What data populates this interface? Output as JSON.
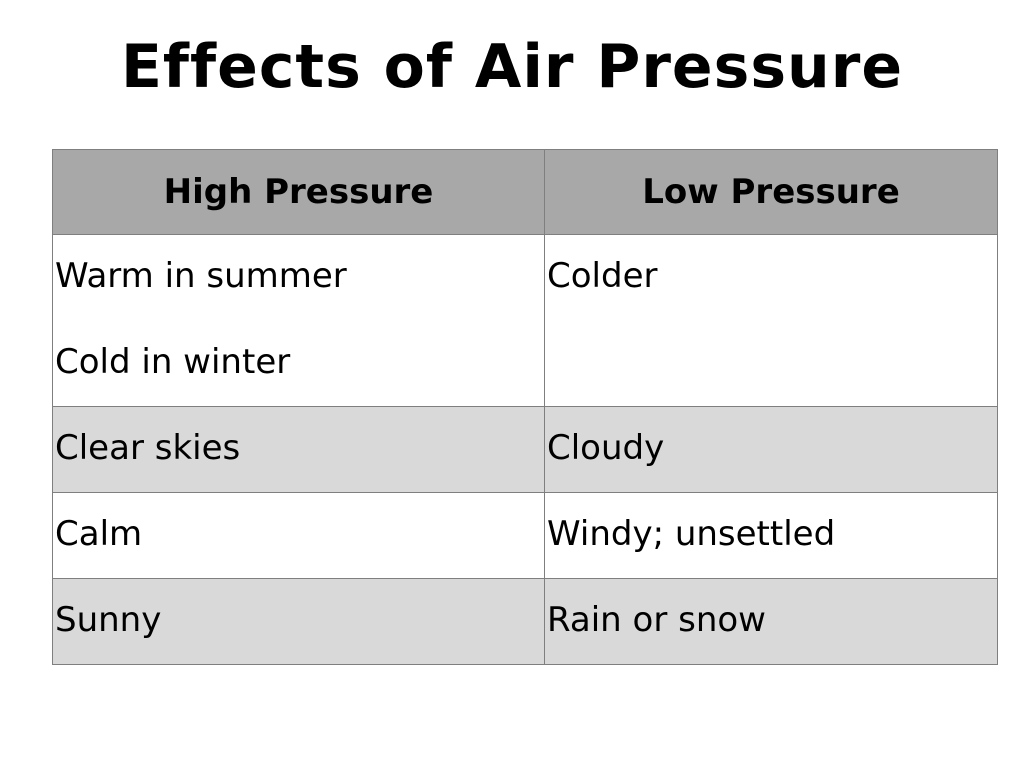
{
  "title": "Effects of Air Pressure",
  "table": {
    "headers": [
      "High Pressure",
      "Low Pressure"
    ],
    "rows": [
      {
        "high": [
          "Warm in summer",
          "Cold in winter"
        ],
        "low": [
          "Colder"
        ]
      },
      {
        "high": [
          "Clear skies"
        ],
        "low": [
          "Cloudy"
        ]
      },
      {
        "high": [
          "Calm"
        ],
        "low": [
          "Windy; unsettled"
        ]
      },
      {
        "high": [
          "Sunny"
        ],
        "low": [
          "Rain or snow"
        ]
      }
    ]
  },
  "colors": {
    "header_bg": "#a8a8a8",
    "shaded_row_bg": "#d9d9d9",
    "row_bg": "#ffffff",
    "border": "#7f7f7f"
  }
}
